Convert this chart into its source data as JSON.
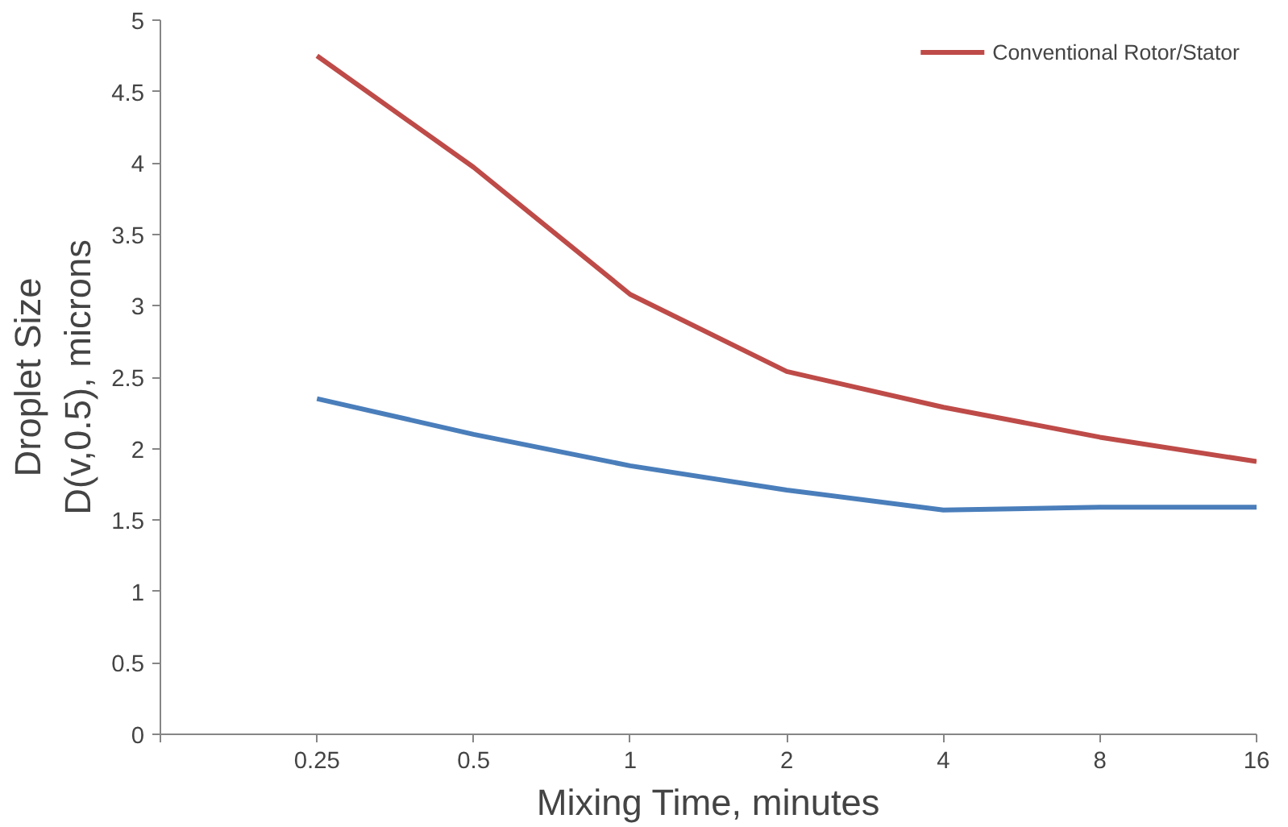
{
  "chart_data": {
    "type": "line",
    "xlabel": "Mixing Time, minutes",
    "ylabel": "Droplet Size\nD(v,0.5), microns",
    "categories": [
      null,
      "0.25",
      "0.5",
      "1",
      "2",
      "4",
      "8",
      "16"
    ],
    "series": [
      {
        "color": "#4a7ebb",
        "values": [
          null,
          2.35,
          2.1,
          1.88,
          1.71,
          1.57,
          1.59,
          1.59
        ]
      },
      {
        "name": "Conventional Rotor/Stator",
        "color": "#be4b48",
        "values": [
          null,
          4.75,
          3.97,
          3.08,
          2.54,
          2.29,
          2.08,
          1.91
        ]
      }
    ],
    "ylim": [
      0,
      5
    ],
    "yticks": [
      0,
      0.5,
      1,
      1.5,
      2,
      2.5,
      3,
      3.5,
      4,
      4.5,
      5
    ],
    "grid": false,
    "legend": "top right",
    "marker": "none",
    "line_style": "solid"
  }
}
